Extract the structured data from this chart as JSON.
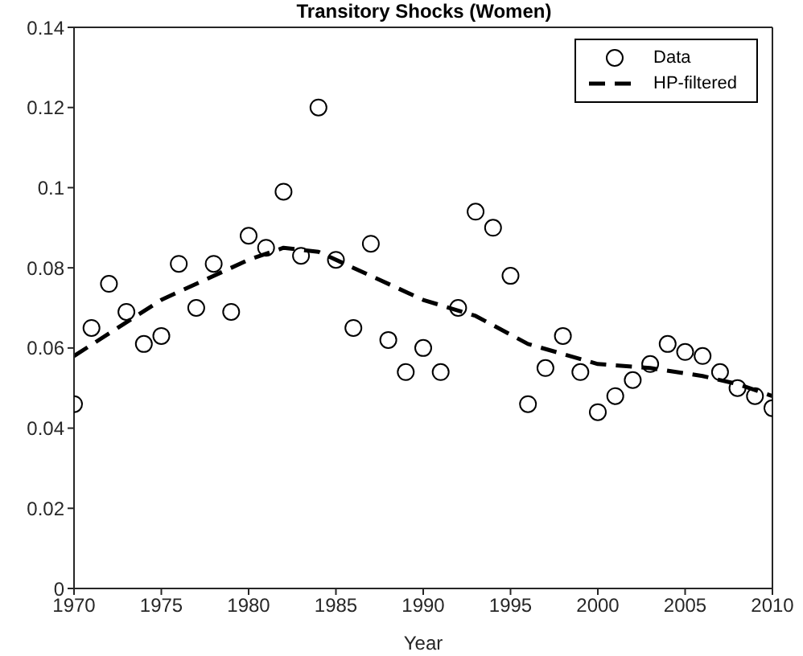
{
  "chart_data": {
    "type": "scatter",
    "title": "Transitory Shocks (Women)",
    "xlabel": "Year",
    "xlim": [
      1970,
      2010
    ],
    "xticks": [
      1970,
      1975,
      1980,
      1985,
      1990,
      1995,
      2000,
      2005,
      2010
    ],
    "ylim": [
      0,
      0.14
    ],
    "yticks": [
      0,
      0.02,
      0.04,
      0.06,
      0.08,
      0.1,
      0.12,
      0.14
    ],
    "legend": "top right",
    "series": [
      {
        "name": "Data",
        "type": "scatter",
        "marker": "circle",
        "color": "#000000",
        "x": [
          1970,
          1971,
          1972,
          1973,
          1974,
          1975,
          1976,
          1977,
          1978,
          1979,
          1980,
          1981,
          1982,
          1983,
          1984,
          1985,
          1986,
          1987,
          1988,
          1989,
          1990,
          1991,
          1992,
          1993,
          1994,
          1995,
          1996,
          1997,
          1998,
          1999,
          2000,
          2001,
          2002,
          2003,
          2004,
          2005,
          2006,
          2007,
          2008,
          2009,
          2010
        ],
        "values": [
          0.046,
          0.065,
          0.076,
          0.069,
          0.061,
          0.063,
          0.081,
          0.07,
          0.081,
          0.069,
          0.088,
          0.085,
          0.099,
          0.083,
          0.12,
          0.082,
          0.065,
          0.086,
          0.062,
          0.054,
          0.06,
          0.054,
          0.07,
          0.094,
          0.09,
          0.078,
          0.046,
          0.055,
          0.063,
          0.054,
          0.044,
          0.048,
          0.052,
          0.056,
          0.061,
          0.059,
          0.058,
          0.054,
          0.05,
          0.048,
          0.045
        ]
      },
      {
        "name": "HP-filtered",
        "type": "line",
        "marker": "none",
        "line_style": "dashed",
        "color": "#000000",
        "x": [
          1970,
          1975,
          1980,
          1982,
          1984,
          1987,
          1990,
          1993,
          1996,
          2000,
          2003,
          2006,
          2008,
          2010
        ],
        "values": [
          0.058,
          0.072,
          0.082,
          0.085,
          0.084,
          0.078,
          0.072,
          0.068,
          0.061,
          0.056,
          0.055,
          0.053,
          0.051,
          0.048
        ]
      }
    ]
  }
}
